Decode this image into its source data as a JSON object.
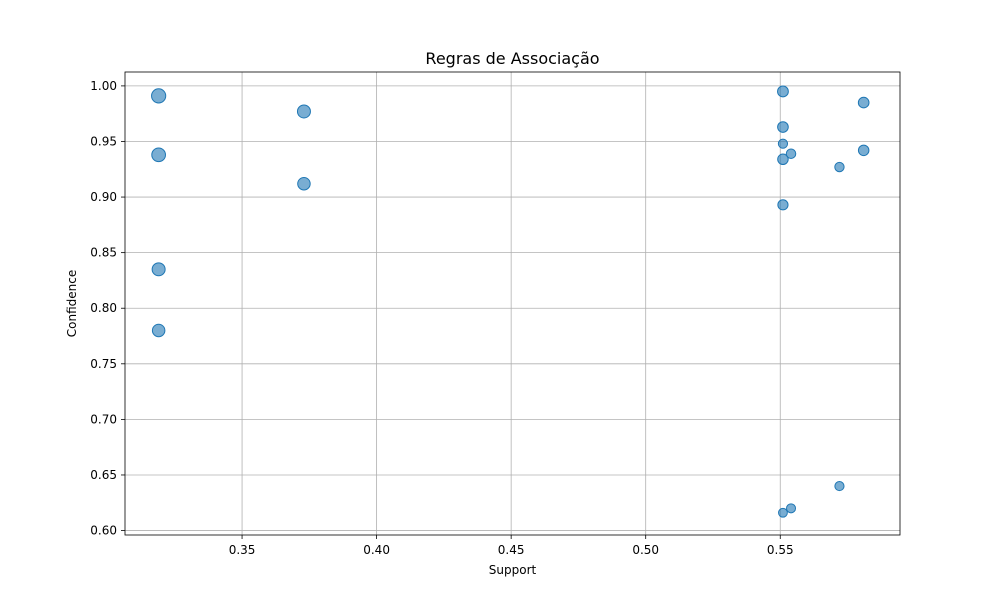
{
  "chart_data": {
    "type": "scatter",
    "title": "Regras de Associação",
    "xlabel": "Support",
    "ylabel": "Confidence",
    "xlim": [
      0.3065,
      0.5945
    ],
    "ylim": [
      0.596,
      1.0125
    ],
    "xticks": [
      0.35,
      0.4,
      0.45,
      0.5,
      0.55
    ],
    "xtick_labels": [
      "0.35",
      "0.40",
      "0.45",
      "0.50",
      "0.55"
    ],
    "yticks": [
      0.6,
      0.65,
      0.7,
      0.75,
      0.8,
      0.85,
      0.9,
      0.95,
      1.0
    ],
    "ytick_labels": [
      "0.60",
      "0.65",
      "0.70",
      "0.75",
      "0.80",
      "0.85",
      "0.90",
      "0.95",
      "1.00"
    ],
    "grid": true,
    "marker_color": "#1f77b4",
    "marker_alpha": 0.6,
    "marker_size_encodes": "lift",
    "points": [
      {
        "x": 0.319,
        "y": 0.991,
        "lift": 3.1
      },
      {
        "x": 0.319,
        "y": 0.938,
        "lift": 2.9
      },
      {
        "x": 0.319,
        "y": 0.835,
        "lift": 2.6
      },
      {
        "x": 0.319,
        "y": 0.78,
        "lift": 2.4
      },
      {
        "x": 0.373,
        "y": 0.977,
        "lift": 2.6
      },
      {
        "x": 0.373,
        "y": 0.912,
        "lift": 2.4
      },
      {
        "x": 0.551,
        "y": 0.995,
        "lift": 1.8
      },
      {
        "x": 0.551,
        "y": 0.963,
        "lift": 1.75
      },
      {
        "x": 0.551,
        "y": 0.948,
        "lift": 1.3
      },
      {
        "x": 0.551,
        "y": 0.934,
        "lift": 1.7
      },
      {
        "x": 0.551,
        "y": 0.893,
        "lift": 1.6
      },
      {
        "x": 0.551,
        "y": 0.616,
        "lift": 1.2
      },
      {
        "x": 0.554,
        "y": 0.939,
        "lift": 1.4
      },
      {
        "x": 0.554,
        "y": 0.62,
        "lift": 1.25
      },
      {
        "x": 0.572,
        "y": 0.927,
        "lift": 1.35
      },
      {
        "x": 0.572,
        "y": 0.64,
        "lift": 1.3
      },
      {
        "x": 0.581,
        "y": 0.985,
        "lift": 1.75
      },
      {
        "x": 0.581,
        "y": 0.942,
        "lift": 1.7
      }
    ]
  }
}
